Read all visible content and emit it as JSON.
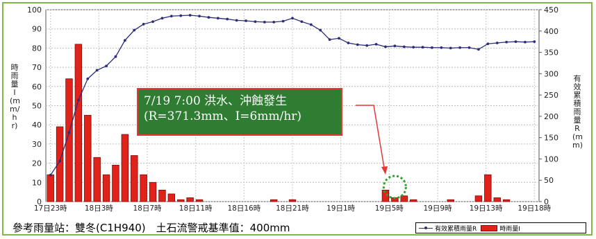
{
  "chart_data": {
    "type": "bar",
    "left_axis": {
      "label": "時雨量I(mm/hr)",
      "range": [
        0,
        100
      ],
      "ticks": [
        0,
        10,
        20,
        30,
        40,
        50,
        60,
        70,
        80,
        90,
        100
      ]
    },
    "right_axis": {
      "label": "有效累積雨量R(mm)",
      "range": [
        0,
        450
      ],
      "ticks": [
        0,
        50,
        100,
        150,
        200,
        250,
        300,
        350,
        400,
        450
      ]
    },
    "x_tick_labels": [
      "17日23時",
      "18日3時",
      "18日7時",
      "18日11時",
      "18日16時",
      "18日21時",
      "19日1時",
      "19日5時",
      "19日9時",
      "19日13時",
      "19日18時"
    ],
    "grid": true,
    "series": [
      {
        "name": "時雨量I",
        "kind": "bar",
        "axis": "left",
        "values": [
          14,
          39,
          64,
          82,
          45,
          23,
          14,
          19,
          35,
          24,
          14,
          10,
          6,
          4,
          1,
          2,
          1,
          0,
          0,
          0,
          0,
          0,
          0,
          0,
          1,
          0,
          1,
          0,
          0,
          0,
          0,
          0,
          0,
          0,
          0,
          0,
          6,
          2,
          3,
          1,
          0,
          0,
          0,
          1,
          0,
          0,
          3,
          14,
          2,
          1,
          0,
          0,
          0
        ]
      },
      {
        "name": "有效累積雨量R",
        "kind": "line",
        "axis": "right",
        "values": [
          62,
          95,
          162,
          238,
          288,
          308,
          318,
          340,
          378,
          402,
          416,
          422,
          430,
          435,
          436,
          437,
          435,
          432,
          430,
          428,
          425,
          424,
          422,
          421,
          421,
          423,
          430,
          422,
          415,
          402,
          380,
          383,
          372,
          368,
          366,
          369,
          363,
          365,
          363,
          362,
          362,
          361,
          361,
          360,
          361,
          361,
          357,
          370,
          372,
          374,
          375,
          374,
          375
        ]
      }
    ]
  },
  "annotation": {
    "line1": "7/19 7:00 洪水、沖蝕發生",
    "line2": "(R=371.3mm、I=6mm/hr)"
  },
  "footer": {
    "note": "參考雨量站：雙冬(C1H940)　土石流警戒基準值：400mm"
  },
  "legend": {
    "line_label": "有效累積雨量R",
    "bar_label": "時雨量I"
  },
  "colors": {
    "bar": "#e0221b",
    "line": "#2c2c7a",
    "annotation_bg": "#2e7d32",
    "annotation_border": "#e53935",
    "arrow": "#e53935",
    "marker_circle": "#2aa52a",
    "frame": "#7fb84a"
  }
}
